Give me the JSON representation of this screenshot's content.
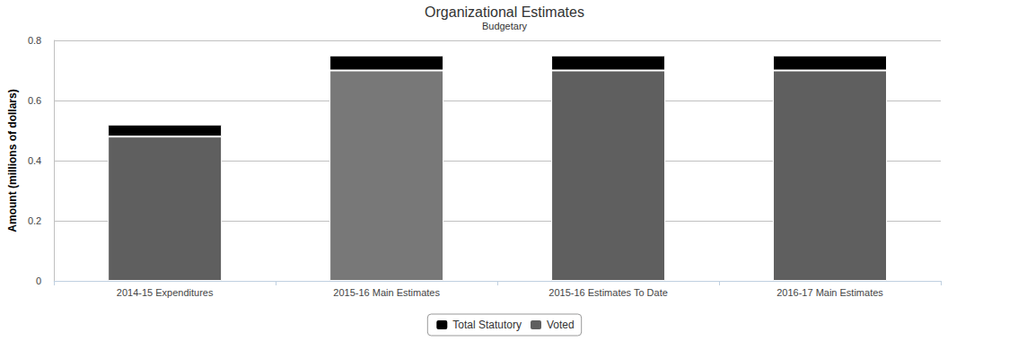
{
  "chart_data": {
    "type": "bar",
    "title": "Organizational Estimates",
    "subtitle": "Budgetary",
    "y_label": "Amount (millions of dollars)",
    "categories": [
      "2014-15 Expenditures",
      "2015-16 Main Estimates",
      "2015-16 Estimates To Date",
      "2016-17 Main Estimates"
    ],
    "series": [
      {
        "name": "Total Statutory",
        "color": "#000000",
        "values": [
          0.04,
          0.05,
          0.05,
          0.05
        ]
      },
      {
        "name": "Voted",
        "color": "#5f5f5f",
        "colors": [
          "#5f5f5f",
          "#787878",
          "#5f5f5f",
          "#5f5f5f"
        ],
        "values": [
          0.48,
          0.7,
          0.7,
          0.7
        ]
      }
    ],
    "stacked": true,
    "ylim": [
      0,
      0.8
    ],
    "yticks": [
      0,
      0.2,
      0.4,
      0.6,
      0.8
    ],
    "grid": true,
    "legend": "bottom"
  }
}
